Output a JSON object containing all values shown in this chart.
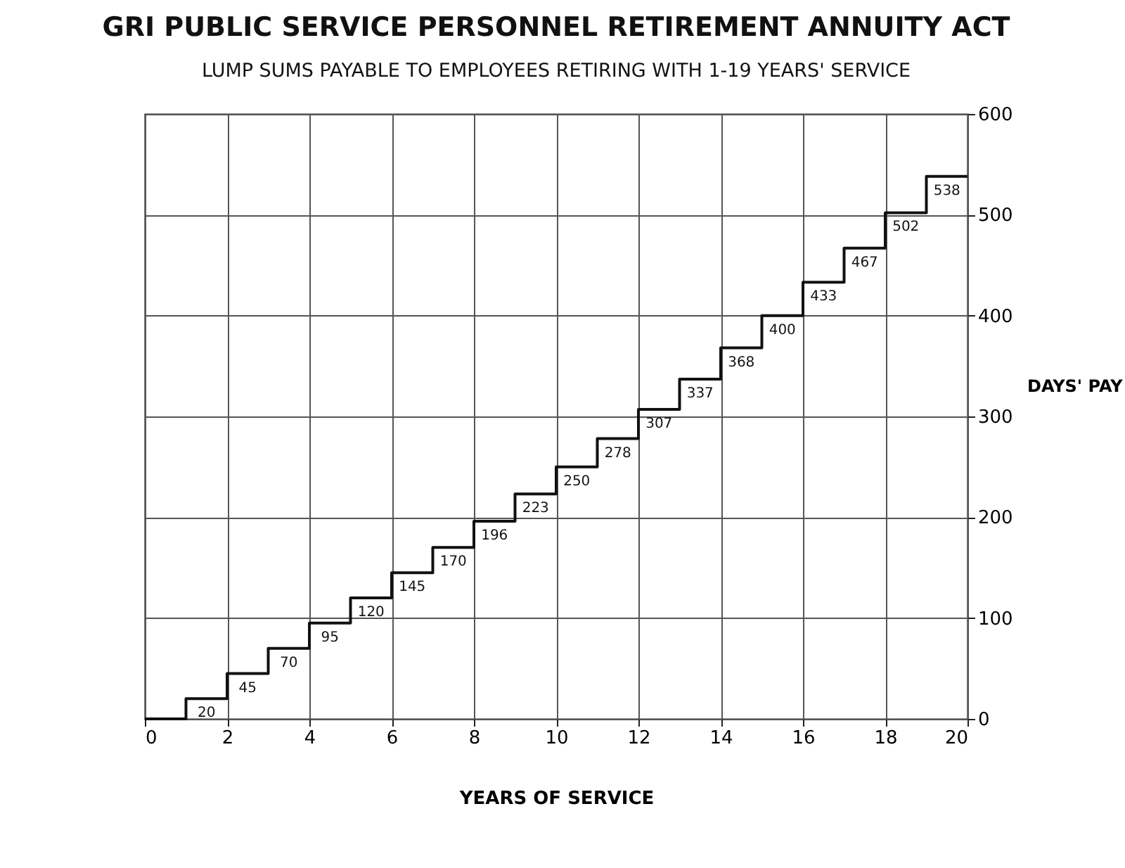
{
  "chart_data": {
    "type": "step",
    "title": "GRI PUBLIC SERVICE PERSONNEL RETIREMENT ANNUITY ACT",
    "subtitle": "LUMP SUMS PAYABLE TO EMPLOYEES RETIRING WITH 1-19 YEARS' SERVICE",
    "xlabel": "YEARS OF SERVICE",
    "ylabel": "DAYS' PAY",
    "x": [
      0,
      1,
      2,
      3,
      4,
      5,
      6,
      7,
      8,
      9,
      10,
      11,
      12,
      13,
      14,
      15,
      16,
      17,
      18,
      19,
      20
    ],
    "series": [
      {
        "color": "#111111",
        "values": [
          0,
          20,
          45,
          70,
          95,
          120,
          145,
          170,
          196,
          223,
          250,
          278,
          307,
          337,
          368,
          400,
          433,
          467,
          502,
          538,
          538
        ],
        "value_labels": [
          null,
          "20",
          "45",
          "70",
          "95",
          "120",
          "145",
          "170",
          "196",
          "223",
          "250",
          "278",
          "307",
          "337",
          "368",
          "400",
          "433",
          "467",
          "502",
          "538",
          null
        ]
      }
    ],
    "xlim": [
      0,
      20
    ],
    "xticks": [
      0,
      2,
      4,
      6,
      8,
      10,
      12,
      14,
      16,
      18,
      20
    ],
    "ylim": [
      0,
      600
    ],
    "yticks": [
      0,
      100,
      200,
      300,
      400,
      500,
      600
    ],
    "grid": true,
    "line_style": "solid",
    "marker": "none"
  }
}
